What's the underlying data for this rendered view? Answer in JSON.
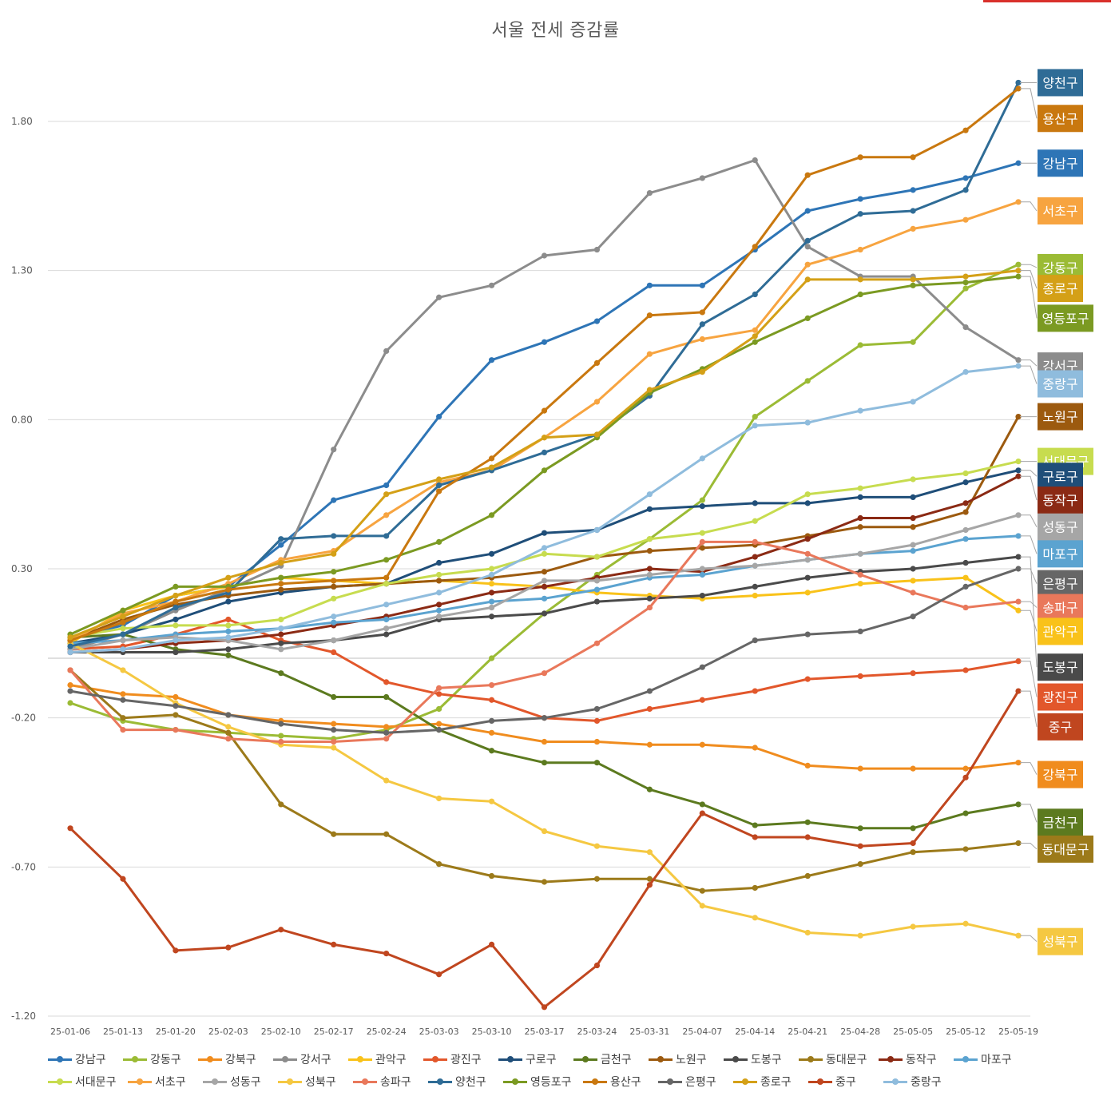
{
  "chart_data": {
    "type": "line",
    "title": "서울 전세 증감률",
    "xlabel": "",
    "ylabel": "",
    "ylim": [
      -1.2,
      2.1
    ],
    "yticks": [
      1.8,
      1.3,
      0.8,
      0.3,
      -0.2,
      -0.7,
      -1.2
    ],
    "ytick_labels": [
      "1.80",
      "1.30",
      "0.80",
      "0.30",
      "-0.20",
      "-0.70",
      "-1.20"
    ],
    "grid": true,
    "legend_position": "bottom",
    "categories": [
      "25-01-06",
      "25-01-13",
      "25-01-20",
      "25-02-03",
      "25-02-10",
      "25-02-17",
      "25-02-24",
      "25-03-03",
      "25-03-10",
      "25-03-17",
      "25-03-24",
      "25-03-31",
      "25-04-07",
      "25-04-14",
      "25-04-21",
      "25-04-28",
      "25-05-05",
      "25-05-12",
      "25-05-19"
    ],
    "series": [
      {
        "name": "강남구",
        "color": "#2E75B6",
        "values": [
          0.07,
          0.11,
          0.21,
          0.24,
          0.38,
          0.53,
          0.58,
          0.81,
          1.0,
          1.06,
          1.13,
          1.25,
          1.25,
          1.37,
          1.5,
          1.54,
          1.57,
          1.61,
          1.66
        ]
      },
      {
        "name": "강동구",
        "color": "#9BBB35",
        "values": [
          -0.15,
          -0.21,
          -0.24,
          -0.25,
          -0.26,
          -0.27,
          -0.24,
          -0.17,
          0.0,
          0.15,
          0.28,
          0.4,
          0.53,
          0.81,
          0.93,
          1.05,
          1.06,
          1.24,
          1.32
        ]
      },
      {
        "name": "강북구",
        "color": "#F08C1E",
        "values": [
          -0.09,
          -0.12,
          -0.13,
          -0.19,
          -0.21,
          -0.22,
          -0.23,
          -0.22,
          -0.25,
          -0.28,
          -0.28,
          -0.29,
          -0.29,
          -0.3,
          -0.36,
          -0.37,
          -0.37,
          -0.37,
          -0.35
        ]
      },
      {
        "name": "강서구",
        "color": "#8C8C8C",
        "values": [
          0.03,
          0.08,
          0.16,
          0.23,
          0.31,
          0.7,
          1.03,
          1.21,
          1.25,
          1.35,
          1.37,
          1.56,
          1.61,
          1.67,
          1.38,
          1.28,
          1.28,
          1.11,
          1.0
        ]
      },
      {
        "name": "관악구",
        "color": "#F9C21A",
        "values": [
          0.05,
          0.16,
          0.21,
          0.24,
          0.27,
          0.26,
          0.25,
          0.26,
          0.25,
          0.24,
          0.22,
          0.21,
          0.2,
          0.21,
          0.22,
          0.25,
          0.26,
          0.27,
          0.16
        ]
      },
      {
        "name": "광진구",
        "color": "#E2572B",
        "values": [
          0.03,
          0.04,
          0.08,
          0.13,
          0.06,
          0.02,
          -0.08,
          -0.12,
          -0.14,
          -0.2,
          -0.21,
          -0.17,
          -0.14,
          -0.11,
          -0.07,
          -0.06,
          -0.05,
          -0.04,
          -0.01
        ]
      },
      {
        "name": "구로구",
        "color": "#1F4E79",
        "values": [
          0.05,
          0.08,
          0.13,
          0.19,
          0.22,
          0.24,
          0.25,
          0.32,
          0.35,
          0.42,
          0.43,
          0.5,
          0.51,
          0.52,
          0.52,
          0.54,
          0.54,
          0.59,
          0.63
        ]
      },
      {
        "name": "금천구",
        "color": "#5C7A1F",
        "values": [
          0.07,
          0.08,
          0.03,
          0.01,
          -0.05,
          -0.13,
          -0.13,
          -0.24,
          -0.31,
          -0.35,
          -0.35,
          -0.44,
          -0.49,
          -0.56,
          -0.55,
          -0.57,
          -0.57,
          -0.52,
          -0.49
        ]
      },
      {
        "name": "노원구",
        "color": "#9C5A0F",
        "values": [
          0.06,
          0.13,
          0.18,
          0.21,
          0.23,
          0.24,
          0.25,
          0.26,
          0.27,
          0.29,
          0.34,
          0.36,
          0.37,
          0.38,
          0.41,
          0.44,
          0.44,
          0.49,
          0.81
        ]
      },
      {
        "name": "도봉구",
        "color": "#4A4A4A",
        "values": [
          0.02,
          0.02,
          0.02,
          0.03,
          0.05,
          0.06,
          0.08,
          0.13,
          0.14,
          0.15,
          0.19,
          0.2,
          0.21,
          0.24,
          0.27,
          0.29,
          0.3,
          0.32,
          0.34
        ]
      },
      {
        "name": "동대문구",
        "color": "#9C7A1A",
        "values": [
          -0.04,
          -0.2,
          -0.19,
          -0.25,
          -0.49,
          -0.59,
          -0.59,
          -0.69,
          -0.73,
          -0.75,
          -0.74,
          -0.74,
          -0.78,
          -0.77,
          -0.73,
          -0.69,
          -0.65,
          -0.64,
          -0.62
        ]
      },
      {
        "name": "동작구",
        "color": "#8B2A14",
        "values": [
          0.02,
          0.03,
          0.05,
          0.06,
          0.08,
          0.11,
          0.14,
          0.18,
          0.22,
          0.24,
          0.27,
          0.3,
          0.29,
          0.34,
          0.4,
          0.47,
          0.47,
          0.52,
          0.61
        ]
      },
      {
        "name": "마포구",
        "color": "#5BA3D0",
        "values": [
          0.05,
          0.06,
          0.08,
          0.09,
          0.1,
          0.12,
          0.13,
          0.16,
          0.19,
          0.2,
          0.23,
          0.27,
          0.28,
          0.31,
          0.33,
          0.35,
          0.36,
          0.4,
          0.41
        ]
      },
      {
        "name": "서대문구",
        "color": "#C7DC4F",
        "values": [
          0.07,
          0.1,
          0.11,
          0.11,
          0.13,
          0.2,
          0.25,
          0.28,
          0.3,
          0.35,
          0.34,
          0.4,
          0.42,
          0.46,
          0.55,
          0.57,
          0.6,
          0.62,
          0.66
        ]
      },
      {
        "name": "서초구",
        "color": "#F7A440",
        "values": [
          0.06,
          0.15,
          0.19,
          0.25,
          0.33,
          0.36,
          0.48,
          0.59,
          0.63,
          0.74,
          0.86,
          1.02,
          1.07,
          1.1,
          1.32,
          1.37,
          1.44,
          1.47,
          1.53
        ]
      },
      {
        "name": "성동구",
        "color": "#A6A6A6",
        "values": [
          0.03,
          0.06,
          0.07,
          0.06,
          0.03,
          0.06,
          0.1,
          0.14,
          0.17,
          0.26,
          0.26,
          0.28,
          0.3,
          0.31,
          0.33,
          0.35,
          0.38,
          0.43,
          0.48
        ]
      },
      {
        "name": "성북구",
        "color": "#F5C842",
        "values": [
          0.05,
          -0.04,
          -0.15,
          -0.23,
          -0.29,
          -0.3,
          -0.41,
          -0.47,
          -0.48,
          -0.58,
          -0.63,
          -0.65,
          -0.83,
          -0.87,
          -0.92,
          -0.93,
          -0.9,
          -0.89,
          -0.93
        ]
      },
      {
        "name": "송파구",
        "color": "#E9785B",
        "values": [
          -0.04,
          -0.24,
          -0.24,
          -0.27,
          -0.28,
          -0.28,
          -0.27,
          -0.1,
          -0.09,
          -0.05,
          0.05,
          0.17,
          0.39,
          0.39,
          0.35,
          0.28,
          0.22,
          0.17,
          0.19
        ]
      },
      {
        "name": "양천구",
        "color": "#2F6C96",
        "values": [
          0.04,
          0.08,
          0.17,
          0.22,
          0.4,
          0.41,
          0.41,
          0.58,
          0.63,
          0.69,
          0.75,
          0.88,
          1.12,
          1.22,
          1.4,
          1.49,
          1.5,
          1.57,
          1.93
        ]
      },
      {
        "name": "영등포구",
        "color": "#7B9A22",
        "values": [
          0.08,
          0.16,
          0.24,
          0.24,
          0.27,
          0.29,
          0.33,
          0.39,
          0.48,
          0.63,
          0.74,
          0.89,
          0.97,
          1.06,
          1.14,
          1.22,
          1.25,
          1.26,
          1.28
        ]
      },
      {
        "name": "용산구",
        "color": "#C9780F",
        "values": [
          0.06,
          0.12,
          0.19,
          0.23,
          0.25,
          0.26,
          0.27,
          0.56,
          0.67,
          0.83,
          0.99,
          1.15,
          1.16,
          1.38,
          1.62,
          1.68,
          1.68,
          1.77,
          1.91
        ]
      },
      {
        "name": "은평구",
        "color": "#666666",
        "values": [
          -0.11,
          -0.14,
          -0.16,
          -0.19,
          -0.22,
          -0.24,
          -0.25,
          -0.24,
          -0.21,
          -0.2,
          -0.17,
          -0.11,
          -0.03,
          0.06,
          0.08,
          0.09,
          0.14,
          0.24,
          0.3
        ]
      },
      {
        "name": "종로구",
        "color": "#D4A017",
        "values": [
          0.07,
          0.14,
          0.21,
          0.27,
          0.32,
          0.35,
          0.55,
          0.6,
          0.64,
          0.74,
          0.75,
          0.9,
          0.96,
          1.08,
          1.27,
          1.27,
          1.27,
          1.28,
          1.3
        ]
      },
      {
        "name": "중구",
        "color": "#C0461F",
        "values": [
          -0.57,
          -0.74,
          -0.98,
          -0.97,
          -0.91,
          -0.96,
          -0.99,
          -1.06,
          -0.96,
          -1.17,
          -1.03,
          -0.76,
          -0.52,
          -0.6,
          -0.6,
          -0.63,
          -0.62,
          -0.4,
          -0.11
        ]
      },
      {
        "name": "중랑구",
        "color": "#8FBCDD",
        "values": [
          0.02,
          0.03,
          0.06,
          0.07,
          0.1,
          0.14,
          0.18,
          0.22,
          0.28,
          0.37,
          0.43,
          0.55,
          0.67,
          0.78,
          0.79,
          0.83,
          0.86,
          0.96,
          0.98
        ]
      }
    ],
    "end_labels": [
      {
        "series": "양천구",
        "y": 1.93
      },
      {
        "series": "용산구",
        "y": 1.81
      },
      {
        "series": "강남구",
        "y": 1.66
      },
      {
        "series": "서초구",
        "y": 1.5
      },
      {
        "series": "강동구",
        "y": 1.31
      },
      {
        "series": "종로구",
        "y": 1.24
      },
      {
        "series": "영등포구",
        "y": 1.14
      },
      {
        "series": "강서구",
        "y": 0.98
      },
      {
        "series": "중랑구",
        "y": 0.92
      },
      {
        "series": "노원구",
        "y": 0.81
      },
      {
        "series": "서대문구",
        "y": 0.66
      },
      {
        "series": "구로구",
        "y": 0.61
      },
      {
        "series": "동작구",
        "y": 0.53
      },
      {
        "series": "성동구",
        "y": 0.44
      },
      {
        "series": "마포구",
        "y": 0.35
      },
      {
        "series": "은평구",
        "y": 0.25
      },
      {
        "series": "송파구",
        "y": 0.17
      },
      {
        "series": "관악구",
        "y": 0.09
      },
      {
        "series": "도봉구",
        "y": -0.03
      },
      {
        "series": "광진구",
        "y": -0.13
      },
      {
        "series": "중구",
        "y": -0.23
      },
      {
        "series": "강북구",
        "y": -0.39
      },
      {
        "series": "금천구",
        "y": -0.55
      },
      {
        "series": "동대문구",
        "y": -0.64
      },
      {
        "series": "성북구",
        "y": -0.95
      }
    ]
  },
  "legend": {
    "rows": [
      [
        "강남구",
        "강동구",
        "강북구",
        "강서구",
        "관악구",
        "광진구",
        "구로구",
        "금천구",
        "노원구",
        "도봉구",
        "동대문구",
        "동작구",
        "마포구"
      ],
      [
        "서대문구",
        "서초구",
        "성동구",
        "성북구",
        "송파구",
        "양천구",
        "영등포구",
        "용산구",
        "은평구",
        "종로구",
        "중구",
        "중랑구"
      ]
    ]
  },
  "colors": {
    "gridline": "#D9D9D9",
    "axis_text": "#595959",
    "top_accent": "#D9302B"
  }
}
